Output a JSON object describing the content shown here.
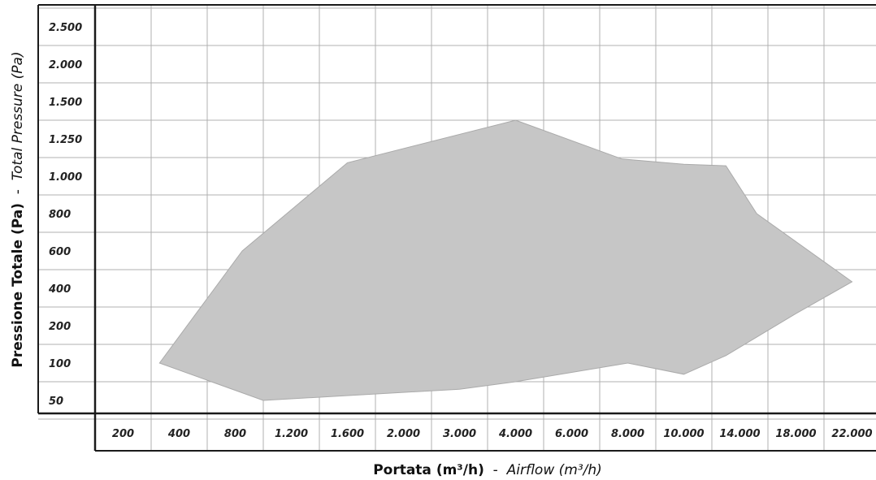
{
  "chart_data": {
    "type": "area",
    "title": "",
    "x_tick_labels": [
      "200",
      "400",
      "800",
      "1.200",
      "1.600",
      "2.000",
      "3.000",
      "4.000",
      "6.000",
      "8.000",
      "10.000",
      "14.000",
      "18.000",
      "22.000"
    ],
    "y_tick_labels": [
      "50",
      "100",
      "200",
      "400",
      "600",
      "800",
      "1.000",
      "1.250",
      "1.500",
      "2.000",
      "2.500"
    ],
    "xlabel": {
      "main": "Portata (m³/h)",
      "separator": " - ",
      "english": "Airflow (m³/h)"
    },
    "ylabel": {
      "main": "Pressione Totale (Pa)",
      "separator": " - ",
      "english": "Total Pressure (Pa)"
    },
    "x_scale": "categorical (non-linear)",
    "y_scale": "categorical (non-linear)",
    "grid": true,
    "legend": "none",
    "region": {
      "fill": "#c6c6c6",
      "boundary": [
        {
          "x": 330,
          "y": 100
        },
        {
          "x": 850,
          "y": 600
        },
        {
          "x": 1600,
          "y": 1090
        },
        {
          "x": 4000,
          "y": 1375
        },
        {
          "x": 7800,
          "y": 1115
        },
        {
          "x": 10000,
          "y": 1080
        },
        {
          "x": 13000,
          "y": 1070
        },
        {
          "x": 15200,
          "y": 800
        },
        {
          "x": 22000,
          "y": 435
        },
        {
          "x": 18000,
          "y": 265
        },
        {
          "x": 13000,
          "y": 120
        },
        {
          "x": 10000,
          "y": 85
        },
        {
          "x": 8000,
          "y": 100
        },
        {
          "x": 4000,
          "y": 75
        },
        {
          "x": 3000,
          "y": 65
        },
        {
          "x": 1000,
          "y": 40
        }
      ]
    }
  }
}
